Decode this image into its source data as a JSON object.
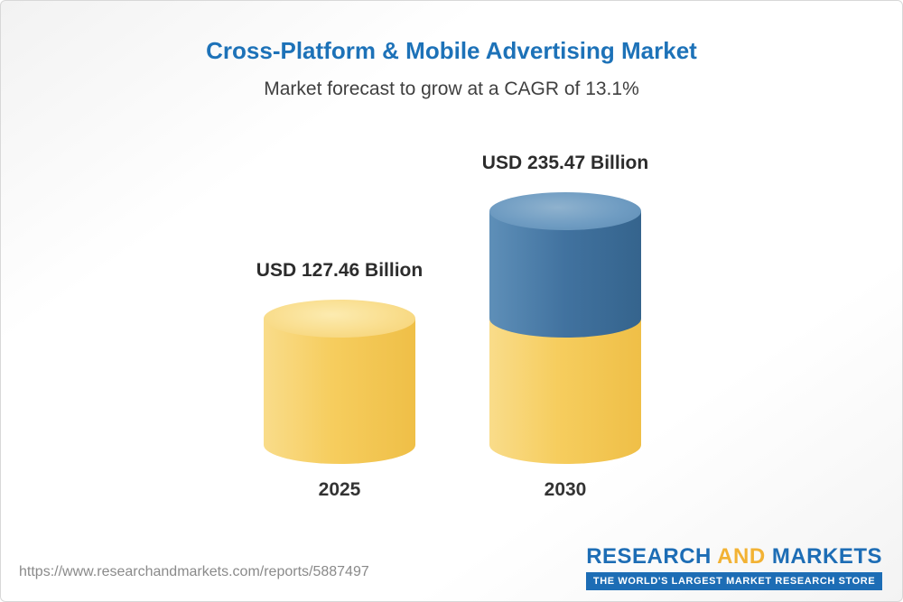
{
  "header": {
    "title": "Cross-Platform & Mobile Advertising Market",
    "subtitle": "Market forecast to grow at a CAGR of 13.1%"
  },
  "chart_data": {
    "type": "bar",
    "title": "Cross-Platform & Mobile Advertising Market",
    "subtitle": "Market forecast to grow at a CAGR of 13.1%",
    "unit": "USD Billion",
    "cagr": "13.1%",
    "categories": [
      "2025",
      "2030"
    ],
    "values": [
      127.46,
      235.47
    ],
    "bars": [
      {
        "category": "2025",
        "value": 127.46,
        "label": "USD 127.46 Billion",
        "segments": [
          {
            "name": "base",
            "value": 127.46,
            "color": "#F6CD5E"
          }
        ]
      },
      {
        "category": "2030",
        "value": 235.47,
        "label": "USD 235.47 Billion",
        "segments": [
          {
            "name": "base",
            "value": 127.46,
            "color": "#F6CD5E"
          },
          {
            "name": "growth",
            "value": 108.01,
            "color": "#41729F"
          }
        ]
      }
    ],
    "ylim": [
      0,
      260
    ],
    "grid": false,
    "legend_position": "none"
  },
  "footer": {
    "url": "https://www.researchandmarkets.com/reports/5887497",
    "logo": {
      "research": "RESEARCH",
      "and": "AND",
      "markets": "MARKETS",
      "tagline": "THE WORLD'S LARGEST MARKET RESEARCH STORE"
    }
  },
  "colors": {
    "title_blue": "#1d72b8",
    "cylinder_yellow": "#F6CD5E",
    "cylinder_blue": "#41729F",
    "logo_blue": "#1d6db5",
    "logo_gold": "#f2b234"
  }
}
